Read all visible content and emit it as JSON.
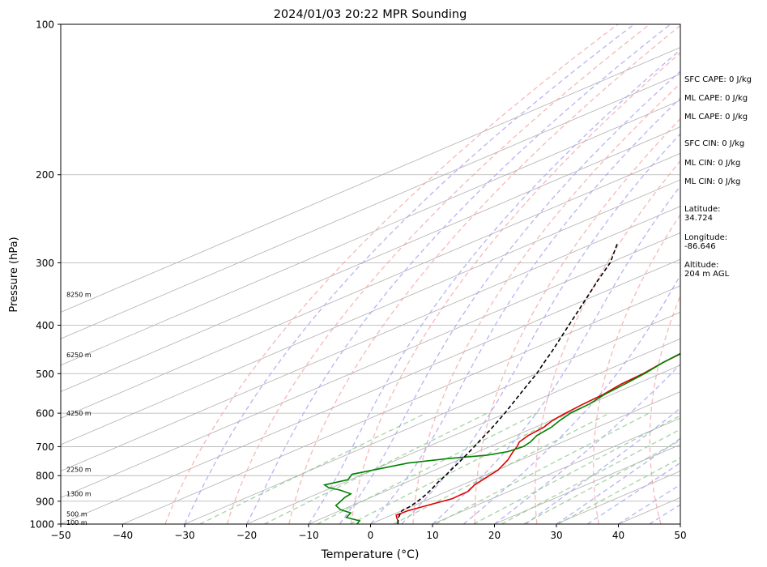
{
  "chart_data": {
    "type": "line",
    "title": "2024/01/03 20:22 MPR Sounding",
    "xlabel": "Temperature (°C)",
    "ylabel": "Pressure (hPa)",
    "xlim": [
      -50,
      50
    ],
    "ylim_hpa": [
      1000,
      100
    ],
    "y_scale": "log",
    "x_ticks": [
      "−50",
      "−40",
      "−30",
      "−20",
      "−10",
      "0",
      "10",
      "20",
      "30",
      "40",
      "50"
    ],
    "x_tick_values": [
      -50,
      -40,
      -30,
      -20,
      -10,
      0,
      10,
      20,
      30,
      40,
      50
    ],
    "y_ticks": [
      "100",
      "200",
      "300",
      "400",
      "500",
      "600",
      "700",
      "800",
      "900",
      "1000"
    ],
    "y_tick_values": [
      100,
      200,
      300,
      400,
      500,
      600,
      700,
      800,
      900,
      1000
    ],
    "skew_isotherms": true,
    "series": [
      {
        "color": "#e00000",
        "kind": "temperature",
        "points": [
          [
            4.4,
            1000
          ],
          [
            3.2,
            985
          ],
          [
            2.0,
            973
          ],
          [
            0.8,
            960
          ],
          [
            1.0,
            940
          ],
          [
            2.5,
            910
          ],
          [
            3.6,
            890
          ],
          [
            3.4,
            860
          ],
          [
            2.0,
            835
          ],
          [
            1.2,
            810
          ],
          [
            0.2,
            780
          ],
          [
            -2.0,
            745
          ],
          [
            -4.2,
            718
          ],
          [
            -5.6,
            700
          ],
          [
            -7.0,
            685
          ],
          [
            -8.0,
            665
          ],
          [
            -8.6,
            640
          ],
          [
            -9.8,
            620
          ],
          [
            -10.4,
            600
          ],
          [
            -11.0,
            575
          ],
          [
            -11.4,
            550
          ],
          [
            -12.4,
            525
          ],
          [
            -12.8,
            500
          ],
          [
            -13.8,
            475
          ],
          [
            -14.4,
            450
          ],
          [
            -15.1,
            425
          ],
          [
            -15.9,
            400
          ],
          [
            -16.5,
            380
          ],
          [
            -17.4,
            360
          ],
          [
            -17.8,
            340
          ],
          [
            -18.8,
            320
          ],
          [
            -19.2,
            300
          ],
          [
            -20.2,
            285
          ],
          [
            -20.8,
            270
          ],
          [
            -22.0,
            256
          ],
          [
            -23.2,
            245
          ]
        ]
      },
      {
        "color": "#008000",
        "kind": "dewpoint",
        "points": [
          [
            -2.2,
            1000
          ],
          [
            -3.0,
            985
          ],
          [
            -6.4,
            970
          ],
          [
            -7.4,
            950
          ],
          [
            -10.4,
            935
          ],
          [
            -12.6,
            918
          ],
          [
            -13.2,
            905
          ],
          [
            -14.2,
            885
          ],
          [
            -14.6,
            870
          ],
          [
            -17.8,
            855
          ],
          [
            -20.6,
            845
          ],
          [
            -22.2,
            835
          ],
          [
            -20.4,
            815
          ],
          [
            -21.8,
            795
          ],
          [
            -19.4,
            775
          ],
          [
            -17.0,
            755
          ],
          [
            -12.4,
            740
          ],
          [
            -7.2,
            728
          ],
          [
            -5.2,
            716
          ],
          [
            -4.6,
            700
          ],
          [
            -5.2,
            685
          ],
          [
            -6.6,
            665
          ],
          [
            -7.4,
            640
          ],
          [
            -8.6,
            620
          ],
          [
            -9.6,
            600
          ],
          [
            -10.0,
            575
          ],
          [
            -11.2,
            550
          ],
          [
            -11.8,
            525
          ],
          [
            -12.6,
            500
          ],
          [
            -13.8,
            475
          ],
          [
            -14.6,
            450
          ],
          [
            -15.2,
            425
          ],
          [
            -15.9,
            400
          ],
          [
            -16.6,
            380
          ],
          [
            -17.3,
            360
          ],
          [
            -18.0,
            345
          ],
          [
            -19.8,
            333
          ],
          [
            -22.0,
            322
          ],
          [
            -23.4,
            310
          ],
          [
            -24.4,
            300
          ],
          [
            -26.2,
            290
          ],
          [
            -28.6,
            283
          ],
          [
            -34.0,
            276
          ],
          [
            -44.0,
            268
          ],
          [
            -50.0,
            263
          ]
        ]
      },
      {
        "color": "#000000",
        "kind": "parcel",
        "dashed": true,
        "points": [
          [
            4.4,
            1000
          ],
          [
            2.0,
            970
          ],
          [
            0.0,
            940
          ],
          [
            -0.2,
            925
          ],
          [
            -1.0,
            900
          ],
          [
            -2.1,
            875
          ],
          [
            -3.4,
            850
          ],
          [
            -4.9,
            825
          ],
          [
            -6.2,
            800
          ],
          [
            -7.7,
            775
          ],
          [
            -9.2,
            750
          ],
          [
            -10.8,
            725
          ],
          [
            -12.5,
            700
          ],
          [
            -14.3,
            675
          ],
          [
            -16.1,
            650
          ],
          [
            -18.1,
            625
          ],
          [
            -20.2,
            600
          ],
          [
            -22.5,
            575
          ],
          [
            -24.9,
            550
          ],
          [
            -27.4,
            525
          ],
          [
            -30.0,
            500
          ],
          [
            -33.0,
            475
          ],
          [
            -36.1,
            450
          ],
          [
            -39.5,
            425
          ],
          [
            -43.1,
            400
          ],
          [
            -46.9,
            375
          ],
          [
            -51.0,
            350
          ],
          [
            -55.4,
            325
          ],
          [
            -60.0,
            300
          ],
          [
            -66.0,
            275
          ]
        ]
      }
    ],
    "height_labels": [
      {
        "text": "100 m",
        "p": 992
      },
      {
        "text": "500 m",
        "p": 955
      },
      {
        "text": "1300 m",
        "p": 870
      },
      {
        "text": "2250 m",
        "p": 778
      },
      {
        "text": "4250 m",
        "p": 600
      },
      {
        "text": "6250 m",
        "p": 458
      },
      {
        "text": "8250 m",
        "p": 347
      }
    ],
    "dry_adiabat_thetas": [
      240,
      250,
      260,
      270,
      280,
      290,
      300,
      310,
      320,
      330,
      340,
      350,
      360,
      370,
      380,
      390,
      400,
      410,
      420,
      430,
      440,
      450
    ],
    "moist_adiabat_starts": [
      -30,
      -20,
      -10,
      -5,
      0,
      5,
      10,
      15,
      20,
      25,
      30,
      35,
      40,
      45
    ],
    "mixing_ratios_g_kg": [
      0.4,
      1,
      2,
      3,
      5,
      8,
      12,
      16,
      20,
      28
    ],
    "colors": {
      "dry_adiabat": "#f4a0a0",
      "moist_adiabat": "#a8a0f0",
      "mixing_ratio": "#8ec88e",
      "isotherm": "#b0b0b0",
      "isobar": "#b0b0b0"
    }
  },
  "sidebar": {
    "sfc_cape": "SFC CAPE: 0 J/kg",
    "ml_cape_1": "ML CAPE: 0 J/kg",
    "ml_cape_2": "ML CAPE: 0 J/kg",
    "sfc_cin": "SFC CIN: 0 J/kg",
    "ml_cin_1": "ML CIN: 0 J/kg",
    "ml_cin_2": "ML CIN: 0 J/kg",
    "latitude_label": "Latitude:",
    "latitude_value": "34.724",
    "longitude_label": "Longitude:",
    "longitude_value": "-86.646",
    "altitude_label": "Altitude:",
    "altitude_value": "204 m AGL"
  }
}
